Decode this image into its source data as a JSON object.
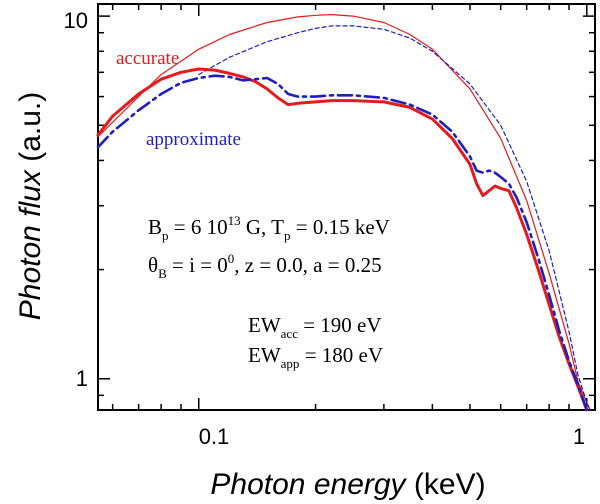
{
  "chart_data": {
    "type": "line",
    "xscale": "log",
    "yscale": "log",
    "xlim": [
      0.055,
      1.05
    ],
    "ylim": [
      0.82,
      10.8
    ],
    "xlabel_italic": "Photon energy",
    "xlabel_unit": "(keV)",
    "ylabel_italic": "Photon flux",
    "ylabel_unit": "(a.u.)",
    "x_ticks": [
      {
        "value": 0.1,
        "label": "0.1"
      },
      {
        "value": 1,
        "label": "1"
      }
    ],
    "y_ticks": [
      {
        "value": 1,
        "label": "1"
      },
      {
        "value": 10,
        "label": "10"
      }
    ],
    "legend": {
      "accurate": "accurate",
      "approximate": "approximate"
    },
    "colors": {
      "accurate": "#e41a1c",
      "approximate": "#1f1fbf"
    },
    "series": [
      {
        "name": "accurate (continuum)",
        "style": "thin-solid",
        "color": "#e41a1c",
        "x": [
          0.055,
          0.06,
          0.07,
          0.08,
          0.1,
          0.12,
          0.15,
          0.18,
          0.2,
          0.22,
          0.25,
          0.3,
          0.35,
          0.4,
          0.5,
          0.6,
          0.7,
          0.8,
          0.9,
          0.95,
          1.0,
          1.02
        ],
        "y": [
          4.65,
          5.1,
          6.0,
          6.9,
          8.1,
          8.9,
          9.6,
          9.95,
          10.05,
          10.1,
          10.0,
          9.6,
          8.9,
          8.1,
          6.3,
          4.6,
          3.1,
          1.95,
          1.25,
          0.98,
          0.86,
          0.82
        ]
      },
      {
        "name": "approximate (continuum)",
        "style": "thin-dashed",
        "color": "#1f1fbf",
        "x": [
          0.1,
          0.12,
          0.15,
          0.18,
          0.2,
          0.22,
          0.25,
          0.3,
          0.35,
          0.4,
          0.5,
          0.6,
          0.7,
          0.8,
          0.9,
          0.95,
          1.0,
          1.02
        ],
        "y": [
          6.9,
          7.7,
          8.5,
          9.0,
          9.25,
          9.4,
          9.4,
          9.2,
          8.7,
          8.0,
          6.5,
          5.0,
          3.5,
          2.25,
          1.35,
          1.02,
          0.86,
          0.82
        ]
      },
      {
        "name": "accurate (with absorption line)",
        "style": "thick-solid",
        "color": "#e41a1c",
        "x": [
          0.055,
          0.06,
          0.07,
          0.08,
          0.09,
          0.1,
          0.11,
          0.12,
          0.13,
          0.14,
          0.15,
          0.16,
          0.17,
          0.18,
          0.2,
          0.22,
          0.25,
          0.3,
          0.35,
          0.4,
          0.45,
          0.5,
          0.52,
          0.54,
          0.56,
          0.58,
          0.6,
          0.63,
          0.66,
          0.7,
          0.75,
          0.8,
          0.85,
          0.9,
          0.95,
          1.0
        ],
        "y": [
          4.7,
          5.3,
          6.1,
          6.7,
          7.0,
          7.15,
          7.1,
          6.95,
          6.8,
          6.6,
          6.3,
          5.95,
          5.7,
          5.75,
          5.8,
          5.85,
          5.85,
          5.8,
          5.6,
          5.2,
          4.6,
          3.9,
          3.45,
          3.2,
          3.3,
          3.4,
          3.35,
          3.3,
          2.95,
          2.5,
          2.0,
          1.6,
          1.3,
          1.1,
          0.95,
          0.82
        ]
      },
      {
        "name": "approximate (with absorption line)",
        "style": "thick-dashdot",
        "color": "#1f1fbf",
        "x": [
          0.055,
          0.06,
          0.07,
          0.08,
          0.09,
          0.1,
          0.11,
          0.12,
          0.13,
          0.14,
          0.15,
          0.16,
          0.17,
          0.18,
          0.2,
          0.22,
          0.25,
          0.3,
          0.35,
          0.4,
          0.45,
          0.5,
          0.52,
          0.54,
          0.56,
          0.58,
          0.6,
          0.63,
          0.66,
          0.7,
          0.75,
          0.8,
          0.85,
          0.9,
          0.95,
          1.0
        ],
        "y": [
          4.35,
          4.8,
          5.5,
          6.1,
          6.55,
          6.75,
          6.85,
          6.8,
          6.65,
          6.7,
          6.75,
          6.5,
          6.1,
          6.0,
          6.0,
          6.05,
          6.05,
          5.95,
          5.7,
          5.35,
          4.8,
          4.1,
          3.75,
          3.7,
          3.75,
          3.7,
          3.6,
          3.45,
          3.15,
          2.7,
          2.15,
          1.7,
          1.35,
          1.12,
          0.96,
          0.82
        ]
      }
    ],
    "annotations": {
      "line1": {
        "b": "B",
        "b_sub": "p",
        "eq": " = 6 10",
        "exp": "13",
        "g": " G,  T",
        "t_sub": "p",
        "t_val": " = 0.15 keV"
      },
      "line2": {
        "theta": "θ",
        "theta_sub": "B",
        "eq": " = i = 0",
        "deg": "0",
        "rest": ",   z = 0.0,    a = 0.25"
      },
      "line3": {
        "ew": "EW",
        "ew_sub": "acc",
        "val": " = 190 eV"
      },
      "line4": {
        "ew": "EW",
        "ew_sub": "app",
        "val": " = 180 eV"
      }
    }
  }
}
